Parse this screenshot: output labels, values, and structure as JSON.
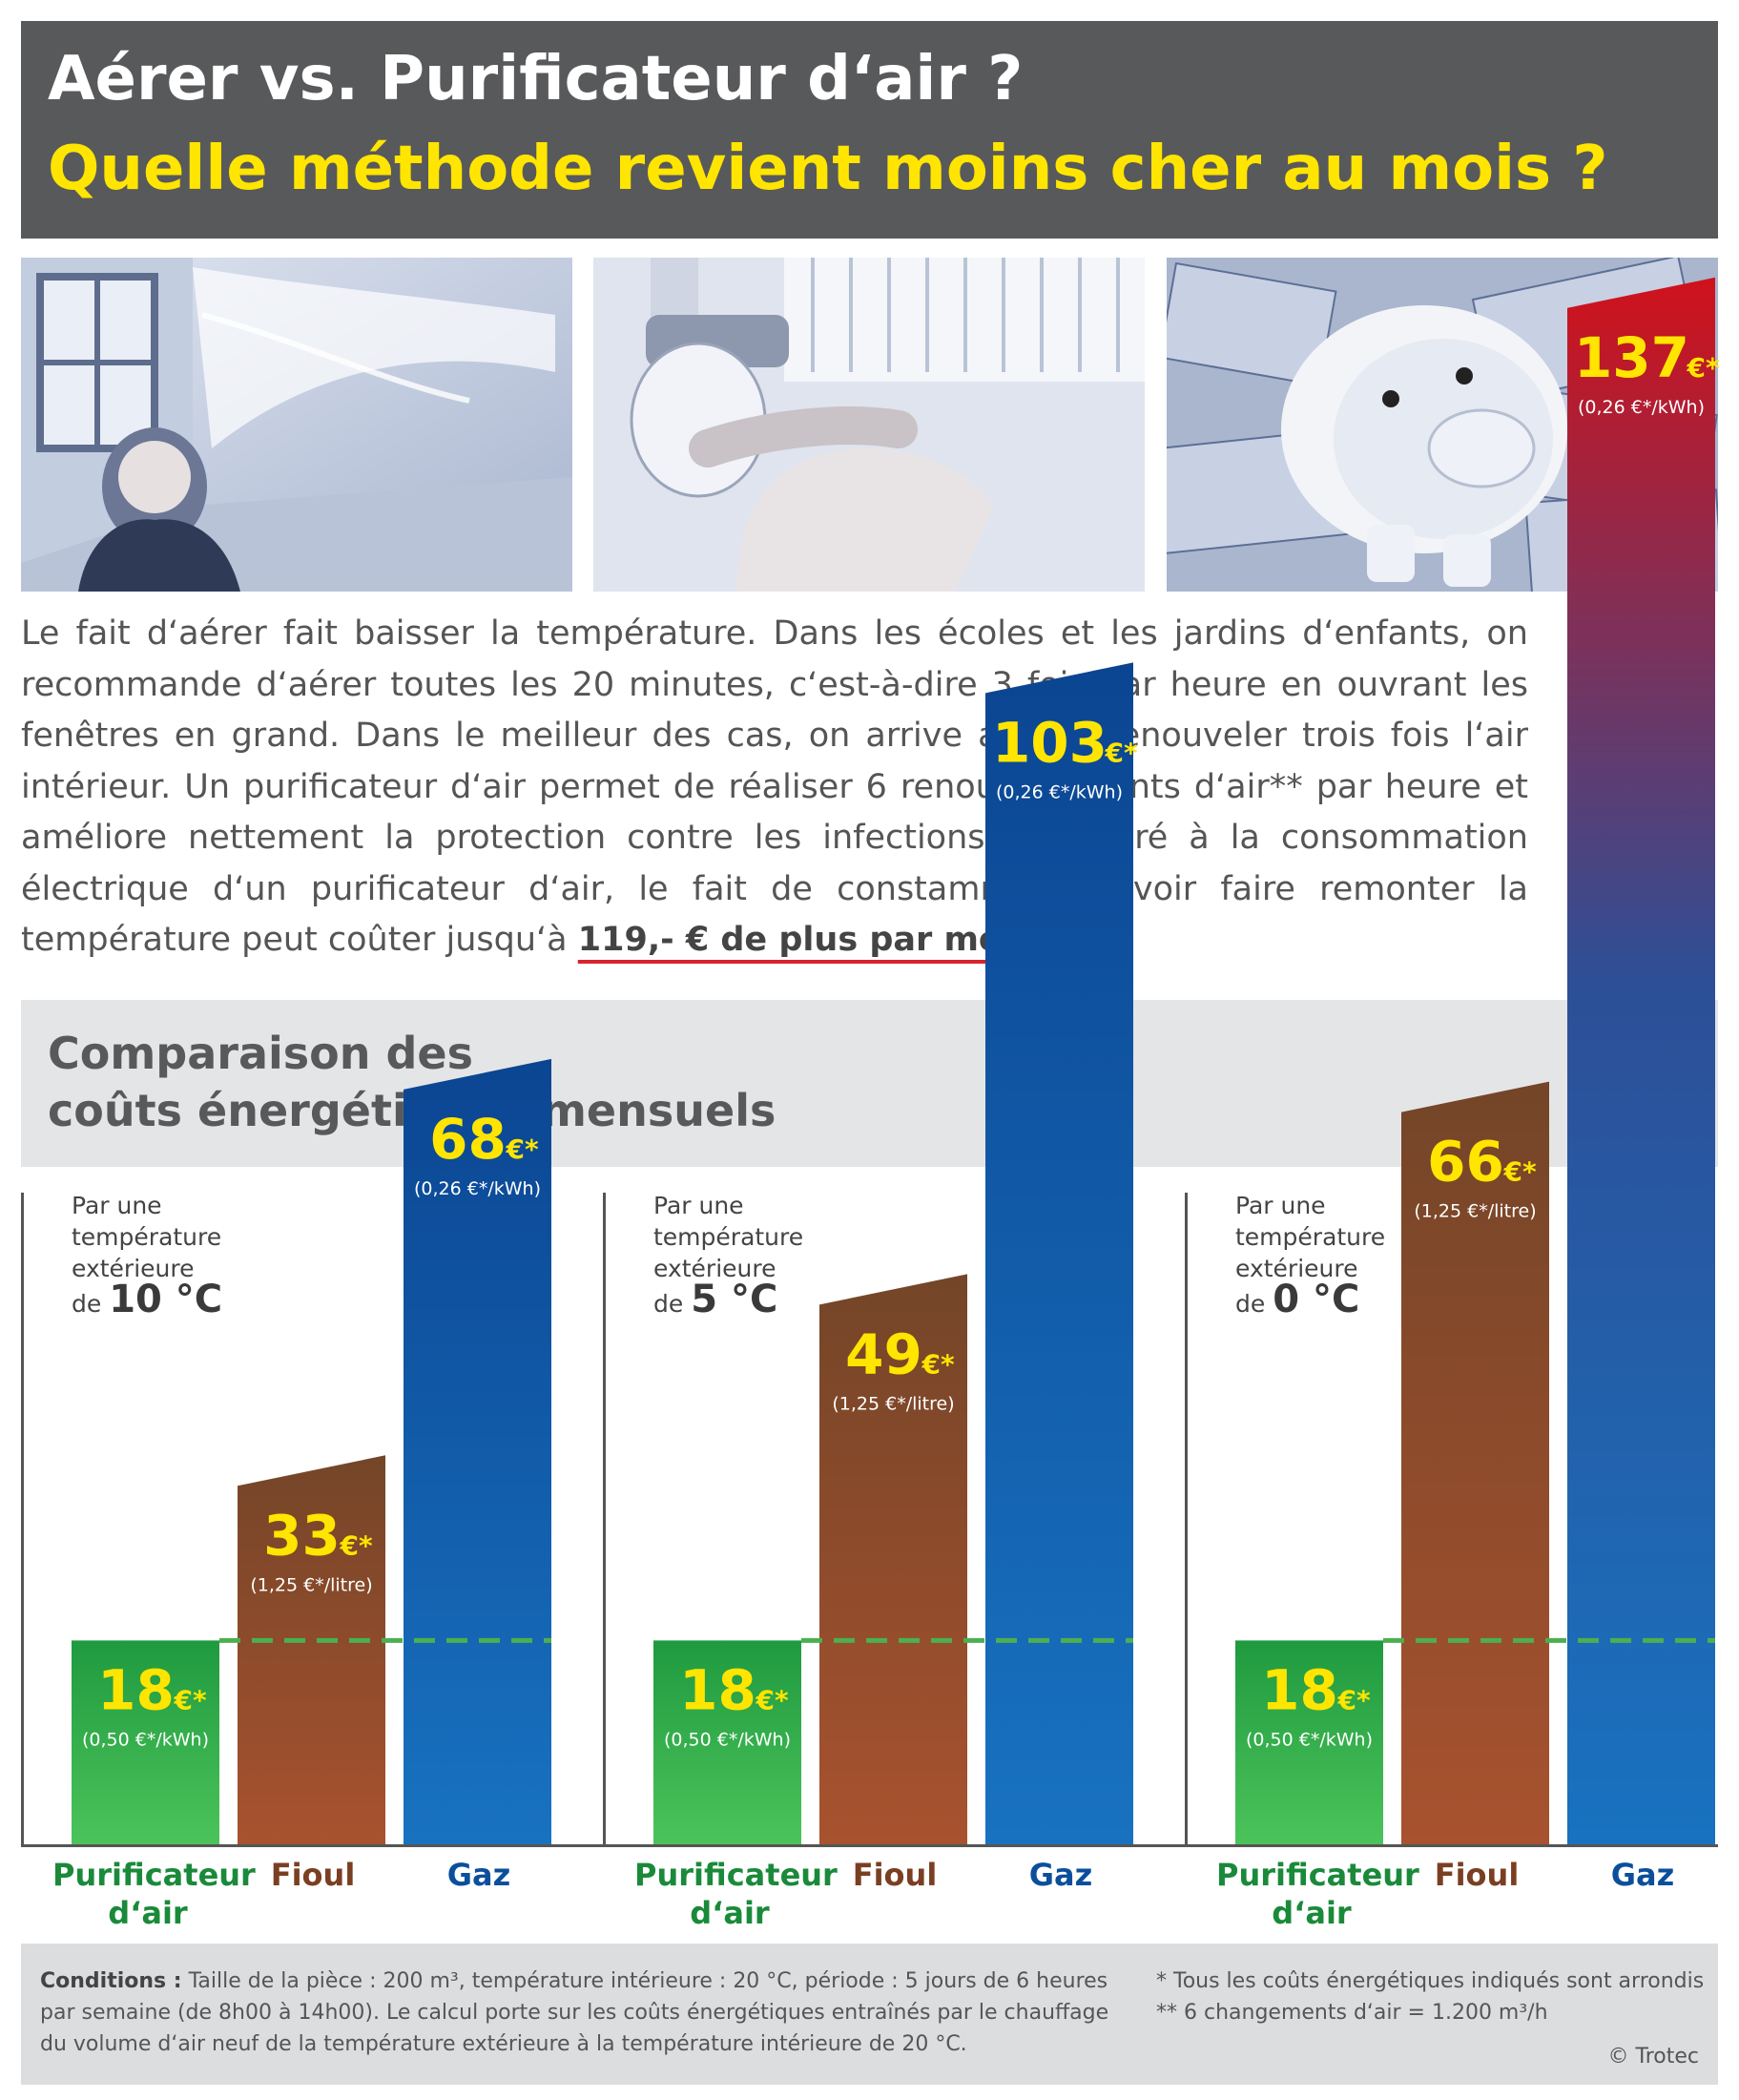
{
  "header": {
    "line1": "Aérer vs. Purificateur d‘air ?",
    "line2": "Quelle méthode revient moins cher au mois ?"
  },
  "photos": [
    {
      "name": "cold-child-open-window-photo"
    },
    {
      "name": "radiator-thermostat-photo"
    },
    {
      "name": "piggy-bank-euro-photo"
    }
  ],
  "intro": {
    "text": "Le fait d‘aérer fait baisser la température. Dans les écoles et les jardins d‘enfants, on recommande d‘aérer toutes les 20 minutes, c‘est-à-dire 3 fois par heure en ouvrant les fenêtres en grand. Dans le meilleur des cas, on arrive ainsi à renouveler trois fois l‘air intérieur. Un purificateur d‘air permet de réaliser 6 renouvellements d‘air** par heure et améliore nettement la protection contre les infections. Comparé à la consommation électrique d‘un purificateur d‘air, le fait de constamment devoir faire remonter la température peut coûter jusqu‘à ",
    "highlight": "119,- € de plus par mois !"
  },
  "section_title": {
    "line1": "Comparaison des",
    "line2": "coûts énergétiques mensuels"
  },
  "colors": {
    "green": "#2fae4a",
    "brown": "#8a4b2c",
    "blue": "#0b4f9c",
    "red": "#c8161d",
    "value_yellow": "#ffe500",
    "dashed_line": "#4caf50",
    "label_green": "#1a8a3a",
    "label_brown": "#7a3f22",
    "label_blue": "#0b4f9c"
  },
  "chart_data": {
    "type": "bar",
    "categories": [
      "Purificateur d‘air",
      "Fioul",
      "Gaz"
    ],
    "currency_symbol": "€",
    "asterisk": "*",
    "groups": [
      {
        "caption_lines": [
          "Par une",
          "température",
          "extérieure"
        ],
        "caption_prefix": "de ",
        "caption_temp": "10 °C",
        "values": [
          18,
          33,
          68
        ],
        "rates": [
          "(0,50 €*/kWh)",
          "(1,25 €*/litre)",
          "(0,26 €*/kWh)"
        ]
      },
      {
        "caption_lines": [
          "Par une",
          "température",
          "extérieure"
        ],
        "caption_prefix": "de ",
        "caption_temp": "5 °C",
        "values": [
          18,
          49,
          103
        ],
        "rates": [
          "(0,50 €*/kWh)",
          "(1,25 €*/litre)",
          "(0,26 €*/kWh)"
        ]
      },
      {
        "caption_lines": [
          "Par une",
          "température",
          "extérieure"
        ],
        "caption_prefix": "de ",
        "caption_temp": "0 °C",
        "values": [
          18,
          66,
          137
        ],
        "rates": [
          "(0,50 €*/kWh)",
          "(1,25 €*/litre)",
          "(0,26 €*/kWh)"
        ]
      }
    ],
    "reference_line_value": 18
  },
  "footer": {
    "conditions_label": "Conditions :",
    "conditions_text": " Taille de la pièce : 200 m³, température intérieure : 20 °C, période : 5 jours de 6 heures par semaine (de 8h00 à 14h00). Le calcul porte sur les coûts énergétiques entraînés par le chauffage du volume d‘air neuf de la température extérieure à la température intérieure de 20 °C.",
    "note1": "*  Tous les coûts énergétiques indiqués sont arrondis",
    "note2": "** 6 changements d‘air = 1.200 m³/h",
    "copyright": "© Trotec"
  }
}
